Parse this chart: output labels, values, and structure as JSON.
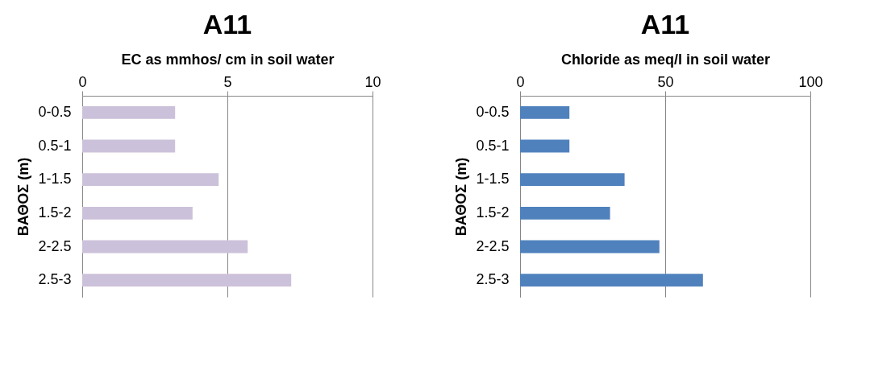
{
  "chart_data": [
    {
      "type": "bar",
      "orientation": "horizontal",
      "title": "A11",
      "xlabel": "EC as mmhos/ cm in soil water",
      "ylabel": "ΒΑΘΟΣ (m)",
      "categories": [
        "0-0.5",
        "0.5-1",
        "1-1.5",
        "1.5-2",
        "2-2.5",
        "2.5-3"
      ],
      "values": [
        3.2,
        3.2,
        4.7,
        3.8,
        5.7,
        7.2
      ],
      "color": "#ccc1da",
      "xlim": [
        0,
        10
      ],
      "xticks": [
        0,
        5,
        10
      ],
      "grid": "x"
    },
    {
      "type": "bar",
      "orientation": "horizontal",
      "title": "A11",
      "xlabel": "Chloride as meq/l in soil water",
      "ylabel": "ΒΑΘΟΣ (m)",
      "categories": [
        "0-0.5",
        "0.5-1",
        "1-1.5",
        "1.5-2",
        "2-2.5",
        "2.5-3"
      ],
      "values": [
        17,
        17,
        36,
        31,
        48,
        63
      ],
      "color": "#4f81bd",
      "xlim": [
        0,
        100
      ],
      "xticks": [
        0,
        50,
        100
      ],
      "grid": "x"
    }
  ]
}
